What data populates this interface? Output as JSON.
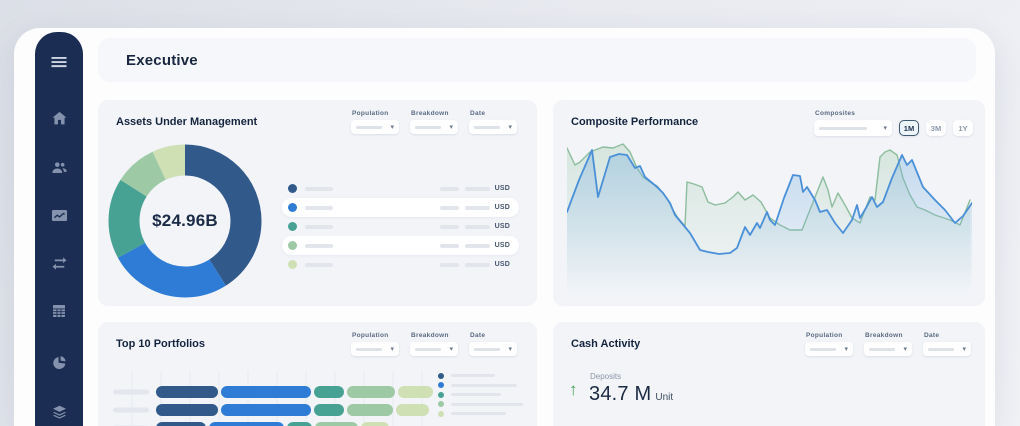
{
  "header": {
    "title": "Executive"
  },
  "palette": {
    "series": [
      "#31598a",
      "#2e7cd6",
      "#47a294",
      "#9dc9a5",
      "#cfe0b5"
    ],
    "sidebar_bg": "#1b2d52",
    "card_bg": "#f2f4f8",
    "positive_green": "#41a355",
    "line_blue": "#4a90d8",
    "line_green": "#8cbd9d"
  },
  "sidebar": {
    "items": [
      {
        "icon": "menu-icon"
      },
      {
        "icon": "home-icon"
      },
      {
        "icon": "clients-icon"
      },
      {
        "icon": "chart-folder-icon"
      },
      {
        "icon": "transfers-icon"
      },
      {
        "icon": "calculator-icon"
      },
      {
        "icon": "allocation-pie-icon"
      },
      {
        "icon": "layers-icon"
      }
    ]
  },
  "filters": {
    "labels": [
      "Population",
      "Breakdown",
      "Date"
    ]
  },
  "cards": {
    "aum": {
      "title": "Assets Under Management",
      "center_value": "$24.96B",
      "legend_unit": "USD"
    },
    "composite": {
      "title": "Composite Performance",
      "selector_label": "Composites",
      "ranges": [
        {
          "label": "1M",
          "selected": true
        },
        {
          "label": "3M",
          "selected": false
        },
        {
          "label": "1Y",
          "selected": false
        }
      ]
    },
    "top10": {
      "title": "Top 10 Portfolios"
    },
    "cash": {
      "title": "Cash Activity",
      "metric_label": "Deposits",
      "metric_value": "34.7 M",
      "metric_unit": "Unit",
      "trend": "up"
    }
  },
  "chart_data": [
    {
      "type": "pie",
      "variant": "donut",
      "title": "Assets Under Management",
      "center_label": "$24.96B",
      "values": [
        41,
        26,
        17,
        9,
        7
      ],
      "colors": [
        "#31598a",
        "#2e7cd6",
        "#47a294",
        "#9dc9a5",
        "#cfe0b5"
      ],
      "unit": "USD",
      "legend": "5 skeleton rows, each with colored dot and USD amount placeholders"
    },
    {
      "type": "area",
      "title": "Composite Performance",
      "x_range": [
        0,
        405
      ],
      "y_range": [
        0,
        155
      ],
      "y_axis": "screen-coords (y down, baseline 155)",
      "series": [
        {
          "name": "composite-green",
          "color": "#8cbd9d",
          "fill_color": "#a9cfb5",
          "fill_opacity": 0.4,
          "points": [
            [
              0,
              10
            ],
            [
              8,
              27
            ],
            [
              13,
              24
            ],
            [
              23,
              14
            ],
            [
              36,
              9
            ],
            [
              46,
              10
            ],
            [
              56,
              6
            ],
            [
              63,
              14
            ],
            [
              70,
              30
            ],
            [
              76,
              39
            ],
            [
              83,
              44
            ],
            [
              90,
              48
            ],
            [
              96,
              55
            ],
            [
              101,
              62
            ],
            [
              106,
              72
            ],
            [
              111,
              80
            ],
            [
              118,
              88
            ],
            [
              120,
              44
            ],
            [
              127,
              46
            ],
            [
              135,
              49
            ],
            [
              141,
              64
            ],
            [
              148,
              67
            ],
            [
              158,
              65
            ],
            [
              166,
              59
            ],
            [
              171,
              54
            ],
            [
              178,
              62
            ],
            [
              186,
              57
            ],
            [
              194,
              64
            ],
            [
              203,
              80
            ],
            [
              213,
              87
            ],
            [
              223,
              92
            ],
            [
              235,
              92
            ],
            [
              256,
              39
            ],
            [
              261,
              52
            ],
            [
              265,
              69
            ],
            [
              271,
              55
            ],
            [
              278,
              67
            ],
            [
              285,
              80
            ],
            [
              293,
              85
            ],
            [
              303,
              59
            ],
            [
              308,
              62
            ],
            [
              313,
              19
            ],
            [
              318,
              14
            ],
            [
              323,
              12
            ],
            [
              330,
              17
            ],
            [
              336,
              40
            ],
            [
              343,
              57
            ],
            [
              350,
              69
            ],
            [
              358,
              72
            ],
            [
              368,
              77
            ],
            [
              383,
              82
            ],
            [
              393,
              87
            ],
            [
              403,
              62
            ]
          ]
        },
        {
          "name": "composite-blue",
          "color": "#4a90d8",
          "fill_color": "#7fb3e0",
          "fill_opacity": 0.45,
          "points": [
            [
              0,
              74
            ],
            [
              12,
              42
            ],
            [
              25,
              12
            ],
            [
              31,
              59
            ],
            [
              43,
              19
            ],
            [
              52,
              16
            ],
            [
              60,
              17
            ],
            [
              68,
              30
            ],
            [
              73,
              28
            ],
            [
              78,
              39
            ],
            [
              90,
              49
            ],
            [
              96,
              55
            ],
            [
              103,
              65
            ],
            [
              108,
              77
            ],
            [
              123,
              95
            ],
            [
              133,
              112
            ],
            [
              141,
              114
            ],
            [
              152,
              116
            ],
            [
              163,
              115
            ],
            [
              170,
              110
            ],
            [
              178,
              89
            ],
            [
              183,
              97
            ],
            [
              190,
              85
            ],
            [
              193,
              90
            ],
            [
              200,
              74
            ],
            [
              203,
              82
            ],
            [
              208,
              87
            ],
            [
              217,
              60
            ],
            [
              226,
              37
            ],
            [
              233,
              38
            ],
            [
              236,
              54
            ],
            [
              240,
              49
            ],
            [
              248,
              62
            ],
            [
              253,
              74
            ],
            [
              260,
              72
            ],
            [
              268,
              85
            ],
            [
              276,
              95
            ],
            [
              285,
              82
            ],
            [
              290,
              67
            ],
            [
              293,
              80
            ],
            [
              299,
              70
            ],
            [
              305,
              59
            ],
            [
              310,
              69
            ],
            [
              316,
              64
            ],
            [
              325,
              40
            ],
            [
              335,
              17
            ],
            [
              340,
              27
            ],
            [
              345,
              22
            ],
            [
              356,
              49
            ],
            [
              368,
              62
            ],
            [
              378,
              72
            ],
            [
              388,
              85
            ],
            [
              396,
              78
            ],
            [
              405,
              65
            ]
          ]
        }
      ]
    },
    {
      "type": "bar",
      "stacked": true,
      "orientation": "horizontal",
      "title": "Top 10 Portfolios",
      "colors": [
        "#31598a",
        "#2e7cd6",
        "#47a294",
        "#9dc9a5",
        "#cfe0b5"
      ],
      "rows": [
        {
          "segments": [
            62,
            90,
            30,
            48,
            35
          ]
        },
        {
          "segments": [
            62,
            90,
            30,
            46,
            33
          ]
        },
        {
          "segments": [
            50,
            75,
            25,
            43,
            28
          ]
        }
      ],
      "note_visible_rows": 3
    }
  ]
}
